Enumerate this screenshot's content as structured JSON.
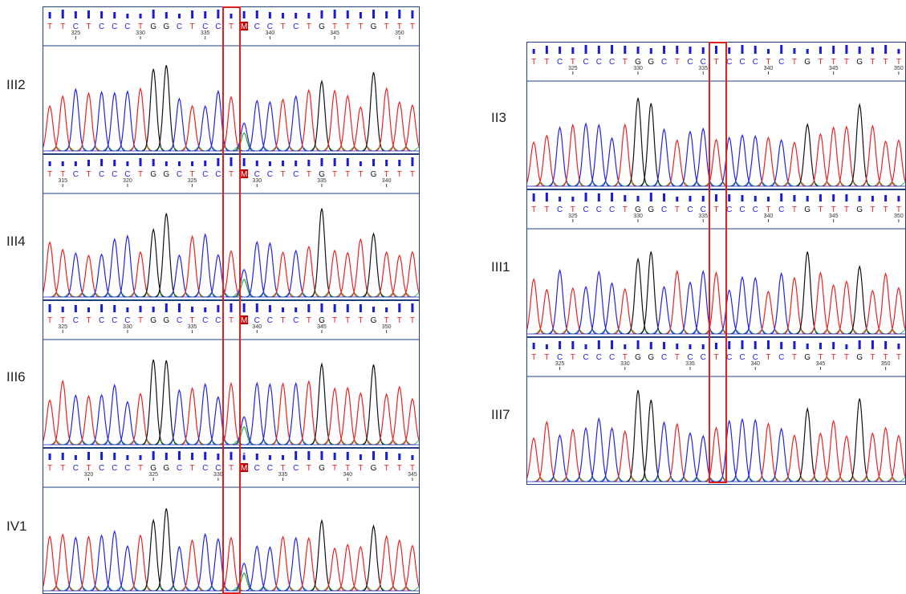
{
  "colors": {
    "A": "#1faa1f",
    "C": "#2222ee",
    "G": "#111111",
    "T": "#ee2222",
    "N": "#ffffff",
    "mark_bg": "#c00000",
    "highlight": "#e02020",
    "frame": "#1f3f7f"
  },
  "traces": [
    {
      "label": "III2",
      "seq": [
        "T",
        "T",
        "C",
        "T",
        "C",
        "C",
        "C",
        "T",
        "G",
        "G",
        "C",
        "T",
        "C",
        "C",
        "T",
        "M",
        "C",
        "C",
        "T",
        "C",
        "T",
        "G",
        "T",
        "T",
        "T",
        "G",
        "T",
        "T",
        "T"
      ],
      "mark_index": 15,
      "mark_symbol": "*",
      "ticks": [
        "325",
        "330",
        "335",
        "340",
        "345",
        "350"
      ],
      "tick_first_index": 2
    },
    {
      "label": "III4",
      "seq": [
        "T",
        "T",
        "C",
        "T",
        "C",
        "C",
        "C",
        "T",
        "G",
        "G",
        "C",
        "T",
        "C",
        "C",
        "T",
        "M",
        "C",
        "C",
        "T",
        "C",
        "T",
        "G",
        "T",
        "T",
        "T",
        "G",
        "T",
        "T",
        "T"
      ],
      "mark_index": 15,
      "mark_symbol": "-",
      "ticks": [
        "315",
        "320",
        "325",
        "330",
        "335",
        "340"
      ],
      "tick_first_index": 1
    },
    {
      "label": "III6",
      "seq": [
        "T",
        "T",
        "C",
        "T",
        "C",
        "C",
        "C",
        "T",
        "G",
        "G",
        "C",
        "T",
        "C",
        "C",
        "T",
        "M",
        "C",
        "C",
        "T",
        "C",
        "T",
        "G",
        "T",
        "T",
        "T",
        "G",
        "T",
        "T",
        "T"
      ],
      "mark_index": 15,
      "mark_symbol": "*",
      "ticks": [
        "325",
        "330",
        "335",
        "340",
        "345",
        "350"
      ],
      "tick_first_index": 1
    },
    {
      "label": "IV1",
      "seq": [
        "T",
        "T",
        "C",
        "T",
        "C",
        "C",
        "C",
        "T",
        "G",
        "G",
        "C",
        "T",
        "C",
        "C",
        "T",
        "M",
        "C",
        "C",
        "T",
        "C",
        "T",
        "G",
        "T",
        "T",
        "T",
        "G",
        "T",
        "T",
        "T"
      ],
      "mark_index": 15,
      "mark_symbol": "*",
      "ticks": [
        "320",
        "325",
        "330",
        "335",
        "340",
        "345"
      ],
      "tick_first_index": 3
    },
    {
      "label": "II3",
      "seq": [
        "T",
        "T",
        "C",
        "T",
        "C",
        "C",
        "C",
        "T",
        "G",
        "G",
        "C",
        "T",
        "C",
        "C",
        "T",
        "C",
        "C",
        "C",
        "T",
        "C",
        "T",
        "G",
        "T",
        "T",
        "T",
        "G",
        "T",
        "T",
        "T"
      ],
      "mark_index": -1,
      "mark_symbol": "",
      "ticks": [
        "325",
        "330",
        "335",
        "340",
        "345",
        "350"
      ],
      "tick_first_index": 3
    },
    {
      "label": "III1",
      "seq": [
        "T",
        "T",
        "C",
        "T",
        "C",
        "C",
        "C",
        "T",
        "G",
        "G",
        "C",
        "T",
        "C",
        "C",
        "T",
        "C",
        "C",
        "C",
        "T",
        "C",
        "T",
        "G",
        "T",
        "T",
        "T",
        "G",
        "T",
        "T",
        "T"
      ],
      "mark_index": -1,
      "mark_symbol": "",
      "ticks": [
        "325",
        "330",
        "335",
        "340",
        "345",
        "350"
      ],
      "tick_first_index": 3
    },
    {
      "label": "III7",
      "seq": [
        "T",
        "T",
        "C",
        "T",
        "C",
        "C",
        "C",
        "T",
        "G",
        "G",
        "C",
        "T",
        "C",
        "C",
        "T",
        "C",
        "C",
        "C",
        "T",
        "C",
        "T",
        "G",
        "T",
        "T",
        "T",
        "G",
        "T",
        "T",
        "T"
      ],
      "mark_index": -1,
      "mark_symbol": "",
      "ticks": [
        "325",
        "330",
        "335",
        "340",
        "345",
        "350"
      ],
      "tick_first_index": 2
    }
  ]
}
